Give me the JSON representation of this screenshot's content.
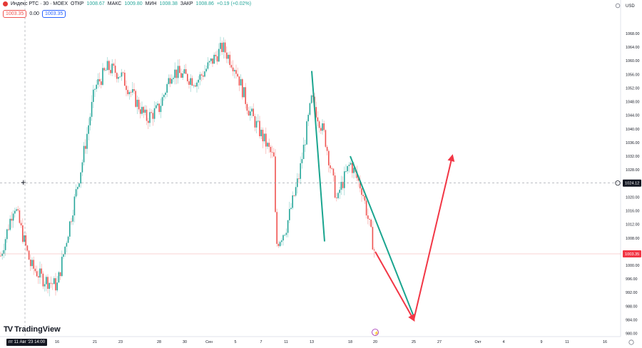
{
  "header": {
    "symbol": "Индекс РТС · 30 · MOEX",
    "open_label": "ОТКР",
    "open": "1008.67",
    "high_label": "МАКС",
    "high": "1009.80",
    "low_label": "МИН",
    "low": "1008.38",
    "close_label": "ЗАКР",
    "close": "1008.86",
    "change": "+0.19 (+0.02%)",
    "bid": "1003.35",
    "spread": "0.00",
    "ask": "1003.35"
  },
  "currency": "USD",
  "brand": "TradingView",
  "cursor_date_label": "пт 11 Авг '23  14:00",
  "colors": {
    "up": "#26a69a",
    "down": "#ef5350",
    "trend_teal": "#1aa58f",
    "forecast_red": "#f23645",
    "price_tag_bg": "#f23645",
    "crosshair_tag_bg": "#131722"
  },
  "chart_data": {
    "type": "candlestick",
    "y_axis": {
      "min": 978,
      "max": 1072,
      "unit": "USD",
      "ticks": [
        980,
        984,
        988,
        992,
        996,
        1000,
        1004,
        1008,
        1012,
        1016,
        1020,
        1024,
        1028,
        1032,
        1036,
        1040,
        1044,
        1048,
        1052,
        1056,
        1060,
        1064,
        1068
      ]
    },
    "x_axis_labels": [
      "16",
      "21",
      "23",
      "28",
      "30",
      "Сен",
      "5",
      "7",
      "11",
      "13",
      "18",
      "20",
      "25",
      "27",
      "Окт",
      "4",
      "9",
      "11",
      "16"
    ],
    "last_price": 1003.35,
    "crosshair_price": 1024.12,
    "price_path_keypoints": [
      {
        "x": "10 Aug",
        "y": 1002
      },
      {
        "x": "11 Aug",
        "y": 1018
      },
      {
        "x": "14 Aug",
        "y": 1000
      },
      {
        "x": "15 Aug",
        "y": 996
      },
      {
        "x": "16 Aug",
        "y": 994
      },
      {
        "x": "18 Aug",
        "y": 1030
      },
      {
        "x": "21 Aug",
        "y": 1052
      },
      {
        "x": "22 Aug",
        "y": 1058
      },
      {
        "x": "23 Aug",
        "y": 1056
      },
      {
        "x": "25 Aug",
        "y": 1043
      },
      {
        "x": "28 Aug",
        "y": 1046
      },
      {
        "x": "29 Aug",
        "y": 1057
      },
      {
        "x": "31 Aug",
        "y": 1054
      },
      {
        "x": "4 Sep",
        "y": 1064
      },
      {
        "x": "5 Sep",
        "y": 1058
      },
      {
        "x": "6 Sep",
        "y": 1046
      },
      {
        "x": "8 Sep",
        "y": 1031
      },
      {
        "x": "10 Sep",
        "y": 1006
      },
      {
        "x": "11 Sep",
        "y": 1011
      },
      {
        "x": "12 Sep",
        "y": 1026
      },
      {
        "x": "13 Sep",
        "y": 1049
      },
      {
        "x": "14 Sep",
        "y": 1038
      },
      {
        "x": "15 Sep",
        "y": 1018
      },
      {
        "x": "17 Sep",
        "y": 1022
      },
      {
        "x": "18 Sep",
        "y": 1030
      },
      {
        "x": "19 Sep",
        "y": 1022
      },
      {
        "x": "20 Sep",
        "y": 1003
      }
    ],
    "trend_lines": [
      {
        "color": "teal",
        "from": {
          "x": "13 Sep",
          "y": 1057
        },
        "to": {
          "x": "14 Sep",
          "y": 1007
        }
      },
      {
        "color": "teal",
        "from": {
          "x": "18 Sep",
          "y": 1032
        },
        "to": {
          "x": "25 Sep",
          "y": 985
        }
      }
    ],
    "forecast_arrows": [
      {
        "color": "red",
        "from": {
          "x": "20 Sep",
          "y": 1004
        },
        "to": {
          "x": "25 Sep",
          "y": 984
        }
      },
      {
        "color": "red",
        "from": {
          "x": "25 Sep",
          "y": 984
        },
        "to": {
          "x": "28 Sep",
          "y": 1032
        }
      }
    ]
  }
}
